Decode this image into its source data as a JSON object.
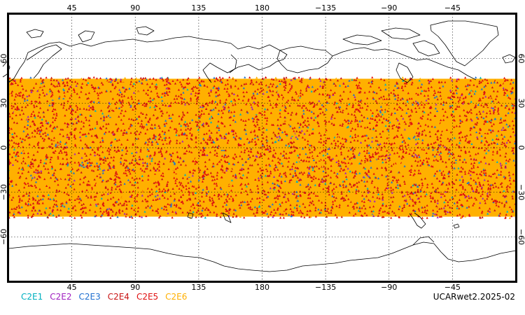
{
  "map": {
    "projection": "equirectangular",
    "lon_range": [
      0,
      360
    ],
    "lat_range": [
      -90,
      90
    ],
    "top_lon_ticks": [
      "45",
      "90",
      "135",
      "180",
      "−135",
      "−90",
      "−45"
    ],
    "bottom_lon_ticks": [
      "45",
      "90",
      "135",
      "180",
      "−135",
      "−90",
      "−45"
    ],
    "left_lat_ticks": [
      "60",
      "30",
      "0",
      "−30",
      "−60"
    ],
    "right_lat_ticks": [
      "60",
      "30",
      "0",
      "−30",
      "−60"
    ],
    "grid": true,
    "data_band_lat": [
      -45,
      45
    ],
    "colors": {
      "land_outline": "#000000",
      "frame": "#000000",
      "grid": "#000000"
    }
  },
  "legend": [
    {
      "label": "C2E1",
      "color": "#00b0c0"
    },
    {
      "label": "C2E2",
      "color": "#a020c0"
    },
    {
      "label": "C2E3",
      "color": "#2070d0"
    },
    {
      "label": "C2E4",
      "color": "#c81414"
    },
    {
      "label": "C2E5",
      "color": "#e01010"
    },
    {
      "label": "C2E6",
      "color": "#ffb000"
    }
  ],
  "dataset_label": "UCARwet2.2025-02"
}
